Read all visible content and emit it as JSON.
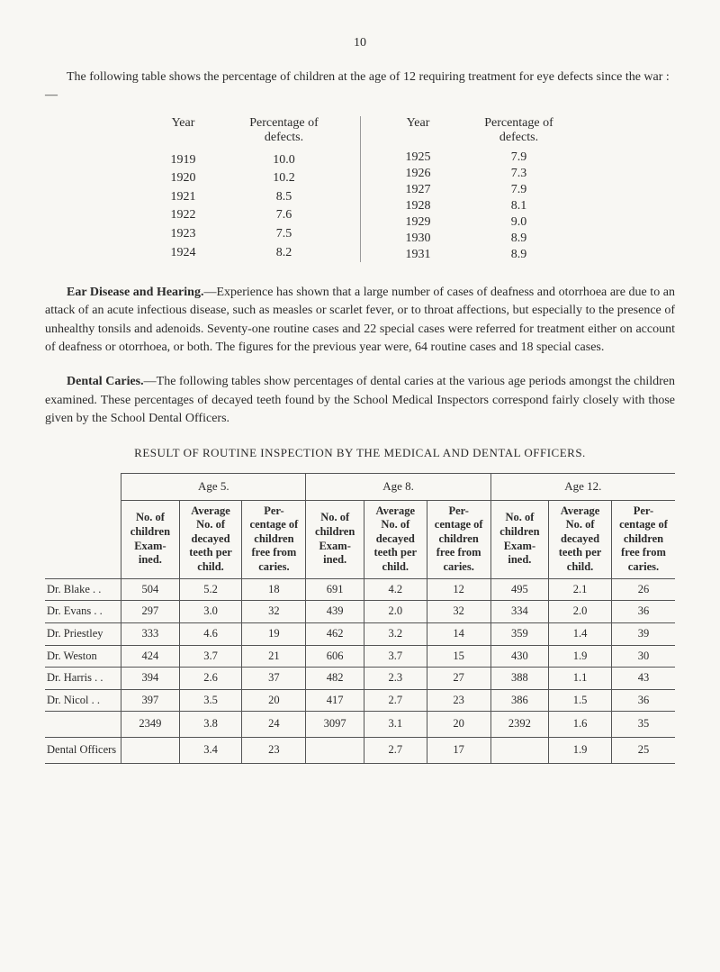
{
  "pageNumber": "10",
  "intro": "The following table shows the percentage of children at the age of 12 requiring treatment for eye defects since the war :—",
  "pctTable": {
    "headers": {
      "year": "Year",
      "pct": "Percentage of defects."
    },
    "left": [
      {
        "year": "1919",
        "pct": "10.0"
      },
      {
        "year": "1920",
        "pct": "10.2"
      },
      {
        "year": "1921",
        "pct": "8.5"
      },
      {
        "year": "1922",
        "pct": "7.6"
      },
      {
        "year": "1923",
        "pct": "7.5"
      },
      {
        "year": "1924",
        "pct": "8.2"
      }
    ],
    "right": [
      {
        "year": "1925",
        "pct": "7.9"
      },
      {
        "year": "1926",
        "pct": "7.3"
      },
      {
        "year": "1927",
        "pct": "7.9"
      },
      {
        "year": "1928",
        "pct": "8.1"
      },
      {
        "year": "1929",
        "pct": "9.0"
      },
      {
        "year": "1930",
        "pct": "8.9"
      },
      {
        "year": "1931",
        "pct": "8.9"
      }
    ]
  },
  "ear": {
    "title": "Ear Disease and Hearing.",
    "body": "—Experience has shown that a large number of cases of deafness and otorrhoea are due to an attack of an acute infectious disease, such as measles or scarlet fever, or to throat affections, but especially to the presence of unhealthy tonsils and adenoids. Seventy-one routine cases and 22 special cases were referred for treatment either on account of deafness or otorrhoea, or both. The figures for the previous year were, 64 routine cases and 18 special cases."
  },
  "dental": {
    "title": "Dental Caries.",
    "body": "—The following tables show percentages of dental caries at the various age periods amongst the children examined. These percentages of decayed teeth found by the School Medical Inspectors correspond fairly closely with those given by the School Dental Officers."
  },
  "resultTitle": "RESULT OF ROUTINE INSPECTION BY THE MEDICAL AND DENTAL OFFICERS.",
  "mainTable": {
    "ageHeaders": [
      "Age 5.",
      "Age 8.",
      "Age 12."
    ],
    "subHeaders": {
      "col1": "No. of children Exam-ined.",
      "col2": "Average No. of decayed teeth per child.",
      "col3": "Per-centage of children free from caries."
    },
    "rows": [
      {
        "label": "Dr. Blake . .",
        "a5": [
          "504",
          "5.2",
          "18"
        ],
        "a8": [
          "691",
          "4.2",
          "12"
        ],
        "a12": [
          "495",
          "2.1",
          "26"
        ]
      },
      {
        "label": "Dr. Evans . .",
        "a5": [
          "297",
          "3.0",
          "32"
        ],
        "a8": [
          "439",
          "2.0",
          "32"
        ],
        "a12": [
          "334",
          "2.0",
          "36"
        ]
      },
      {
        "label": "Dr. Priestley",
        "a5": [
          "333",
          "4.6",
          "19"
        ],
        "a8": [
          "462",
          "3.2",
          "14"
        ],
        "a12": [
          "359",
          "1.4",
          "39"
        ]
      },
      {
        "label": "Dr. Weston",
        "a5": [
          "424",
          "3.7",
          "21"
        ],
        "a8": [
          "606",
          "3.7",
          "15"
        ],
        "a12": [
          "430",
          "1.9",
          "30"
        ]
      },
      {
        "label": "Dr. Harris . .",
        "a5": [
          "394",
          "2.6",
          "37"
        ],
        "a8": [
          "482",
          "2.3",
          "27"
        ],
        "a12": [
          "388",
          "1.1",
          "43"
        ]
      },
      {
        "label": "Dr. Nicol . .",
        "a5": [
          "397",
          "3.5",
          "20"
        ],
        "a8": [
          "417",
          "2.7",
          "23"
        ],
        "a12": [
          "386",
          "1.5",
          "36"
        ]
      }
    ],
    "totals": {
      "label": "",
      "a5": [
        "2349",
        "3.8",
        "24"
      ],
      "a8": [
        "3097",
        "3.1",
        "20"
      ],
      "a12": [
        "2392",
        "1.6",
        "35"
      ]
    },
    "dentalOfficers": {
      "label": "Dental Officers",
      "a5": [
        "",
        "3.4",
        "23"
      ],
      "a8": [
        "",
        "2.7",
        "17"
      ],
      "a12": [
        "",
        "1.9",
        "25"
      ]
    }
  }
}
